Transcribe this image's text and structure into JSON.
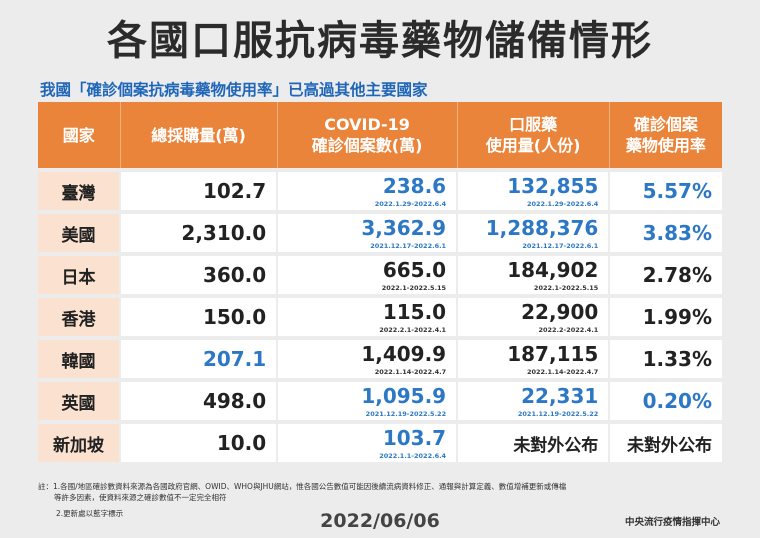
{
  "title": "各國口服抗病毒藥物儲備情形",
  "subtitle": "我國「確診個案抗病毒藥物使用率」已高過其他主要國家",
  "headers": {
    "country": "國家",
    "purchase": "總採購量(萬)",
    "cases_line1": "COVID-19",
    "cases_line2": "確診個案數(萬)",
    "usage_line1": "口服藥",
    "usage_line2": "使用量(人份)",
    "rate_line1": "確診個案",
    "rate_line2": "藥物使用率"
  },
  "rows": [
    {
      "country": "臺灣",
      "purchase": "102.7",
      "cases": "238.6",
      "cases_date": "2022.1.29-2022.6.4",
      "usage": "132,855",
      "usage_date": "2022.1.29-2022.6.4",
      "rate": "5.57%"
    },
    {
      "country": "美國",
      "purchase": "2,310.0",
      "cases": "3,362.9",
      "cases_date": "2021.12.17-2022.6.1",
      "usage": "1,288,376",
      "usage_date": "2021.12.17-2022.6.1",
      "rate": "3.83%"
    },
    {
      "country": "日本",
      "purchase": "360.0",
      "cases": "665.0",
      "cases_date": "2022.1-2022.5.15",
      "usage": "184,902",
      "usage_date": "2022.1-2022.5.15",
      "rate": "2.78%"
    },
    {
      "country": "香港",
      "purchase": "150.0",
      "cases": "115.0",
      "cases_date": "2022.2.1-2022.4.1",
      "usage": "22,900",
      "usage_date": "2022.2-2022.4.1",
      "rate": "1.99%"
    },
    {
      "country": "韓國",
      "purchase": "207.1",
      "cases": "1,409.9",
      "cases_date": "2022.1.14-2022.4.7",
      "usage": "187,115",
      "usage_date": "2022.1.14-2022.4.7",
      "rate": "1.33%"
    },
    {
      "country": "英國",
      "purchase": "498.0",
      "cases": "1,095.9",
      "cases_date": "2021.12.19-2022.5.22",
      "usage": "22,331",
      "usage_date": "2021.12.19-2022.5.22",
      "rate": "0.20%"
    },
    {
      "country": "新加坡",
      "purchase": "10.0",
      "cases": "103.7",
      "cases_date": "2022.1.1-2022.6.4",
      "usage": "未對外公布",
      "usage_date": "",
      "rate": "未對外公布"
    }
  ],
  "highlight_color": "#2d78c4",
  "notes": {
    "line1": "註：1.各國/地區確診數資料來源為各國政府官網、OWID、WHO與JHU網站，惟各國公告數值可能因後續流病資料修正、通報與計算定義、數值增補更新或傳檔",
    "line1b": "等許多因素，使資料來源之確診數值不一定完全相符",
    "line2": "2.更新處以藍字標示"
  },
  "footer_date": "2022/06/06",
  "org": "中央流行疫情指揮中心"
}
